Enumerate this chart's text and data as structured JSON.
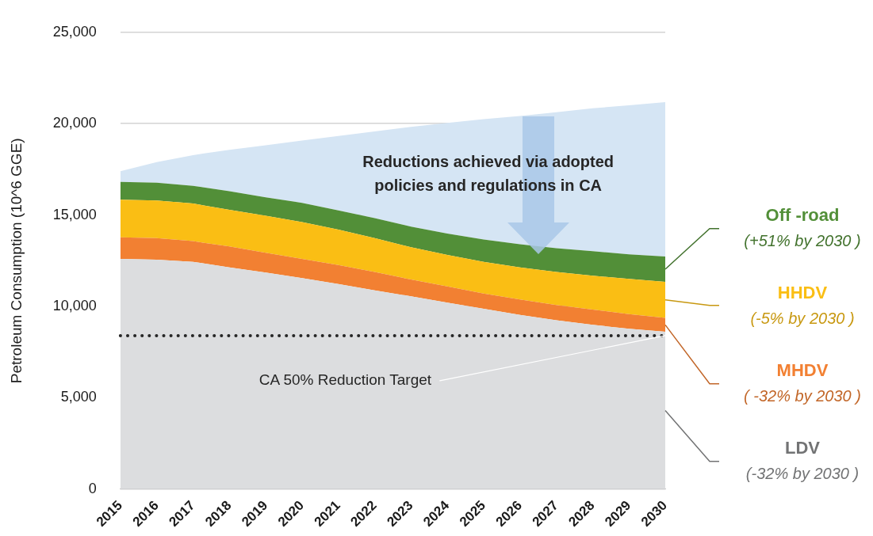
{
  "chart_data": {
    "type": "area",
    "stacked": true,
    "ylabel": "Petroleum Consumption (10^6 GGE)",
    "categories": [
      "2015",
      "2016",
      "2017",
      "2018",
      "2019",
      "2020",
      "2021",
      "2022",
      "2023",
      "2024",
      "2025",
      "2026",
      "2027",
      "2028",
      "2029",
      "2030"
    ],
    "series": [
      {
        "name": "LDV",
        "color": "#dcdddf",
        "values": [
          12600,
          12560,
          12440,
          12140,
          11850,
          11550,
          11220,
          10880,
          10550,
          10210,
          9870,
          9540,
          9240,
          8990,
          8780,
          8610
        ]
      },
      {
        "name": "MHDV",
        "color": "#f28032",
        "values": [
          1180,
          1180,
          1130,
          1140,
          1090,
          1050,
          1050,
          1010,
          920,
          880,
          840,
          840,
          840,
          840,
          800,
          760
        ]
      },
      {
        "name": "HHDV",
        "color": "#fabe14",
        "values": [
          2060,
          2060,
          2060,
          2010,
          2020,
          2020,
          1930,
          1850,
          1770,
          1730,
          1730,
          1760,
          1810,
          1850,
          1930,
          1970
        ]
      },
      {
        "name": "Off -road",
        "color": "#528f38",
        "values": [
          970,
          970,
          970,
          1010,
          1010,
          1050,
          1050,
          1090,
          1130,
          1170,
          1220,
          1260,
          1300,
          1340,
          1340,
          1390
        ]
      },
      {
        "color": "#d5e5f4",
        "values": [
          590,
          1130,
          1680,
          2270,
          2850,
          3410,
          4080,
          4750,
          5460,
          6050,
          6590,
          7020,
          7440,
          7820,
          8160,
          8450
        ]
      }
    ],
    "ylim": [
      0,
      25000
    ],
    "yticks": [
      {
        "value": 0,
        "label": "0"
      },
      {
        "value": 5000,
        "label": "5,000"
      },
      {
        "value": 10000,
        "label": "10,000"
      },
      {
        "value": 15000,
        "label": "15,000"
      },
      {
        "value": 20000,
        "label": "20,000"
      },
      {
        "value": 25000,
        "label": "25,000"
      }
    ],
    "grid": "y",
    "legend": false,
    "ref_lines": [
      {
        "axis": "y",
        "value": 8400,
        "label": "CA 50% Reduction Target",
        "color": "#262626",
        "line_style": "dotted"
      }
    ],
    "annotations": [
      "Reductions achieved via adopted policies and regulations in CA",
      "(-32% by 2030 )",
      "( -32% by 2030 )",
      "(-5% by 2030 )",
      "(+51% by 2030 )"
    ]
  }
}
